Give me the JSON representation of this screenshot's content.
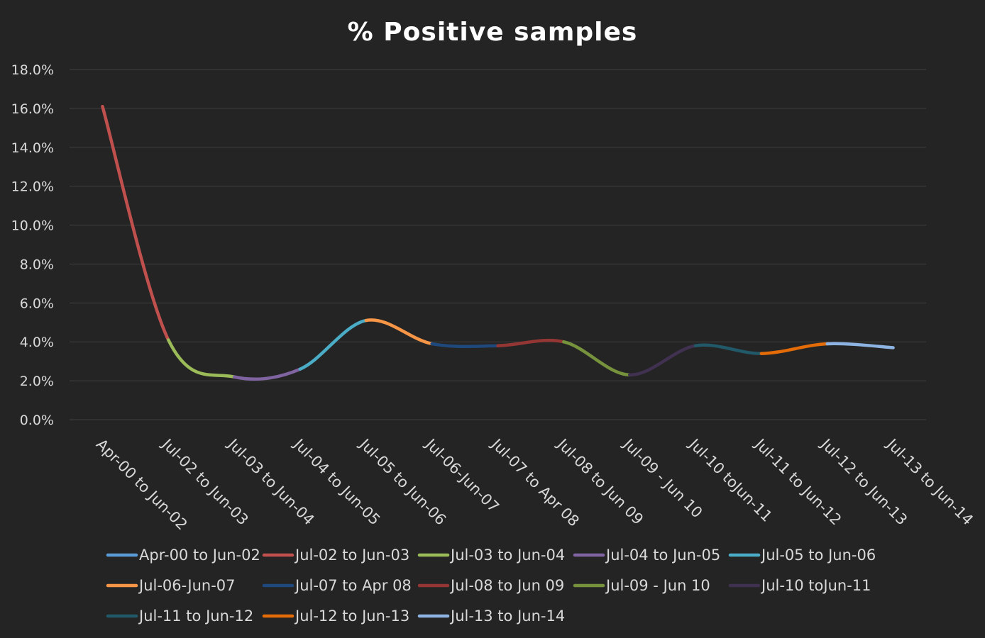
{
  "chart_data": {
    "type": "line",
    "title": "% Positive samples",
    "xlabel": "",
    "ylabel": "",
    "ylim": [
      0,
      0.18
    ],
    "y_tick_step": 0.02,
    "y_tick_format": "percent_1dp",
    "grid": "horizontal",
    "legend_position": "bottom",
    "smooth": true,
    "categories": [
      "Apr-00 to Jun-02",
      "Jul-02 to Jun-03",
      "Jul-03 to Jun-04",
      "Jul-04 to Jun-05",
      "Jul-05 to Jun-06",
      "Jul-06-Jun-07",
      "Jul-07 to Apr 08",
      "Jul-08 to Jun 09",
      "Jul-09 - Jun 10",
      "Jul-10 toJun-11",
      "Jul-11 to Jun-12",
      "Jul-12 to Jun-13",
      "Jul-13 to Jun-14"
    ],
    "values": [
      0.161,
      0.041,
      0.022,
      0.026,
      0.051,
      0.039,
      0.038,
      0.04,
      0.023,
      0.038,
      0.034,
      0.039,
      0.037
    ],
    "series_colors": [
      "#5b9bd5",
      "#c0504d",
      "#9bbb59",
      "#8064a2",
      "#4bacc6",
      "#f79646",
      "#1f497d",
      "#943634",
      "#76923c",
      "#403151",
      "#215968",
      "#e36c09",
      "#8db3e2"
    ]
  }
}
